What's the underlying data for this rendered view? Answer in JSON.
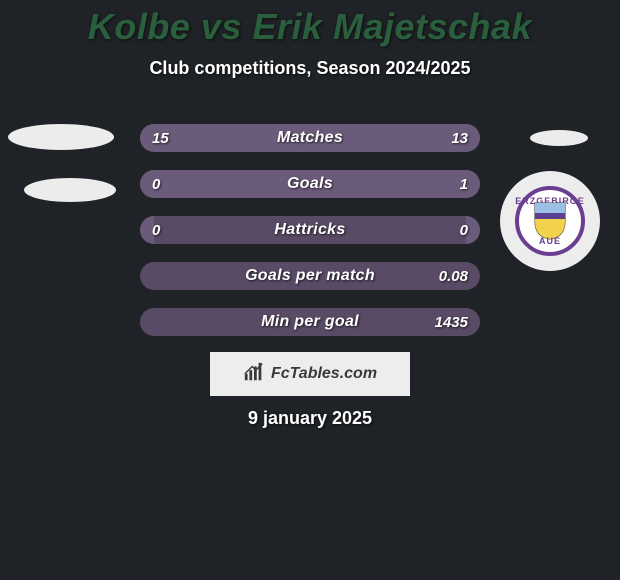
{
  "background_color": "#1f2226",
  "accent_green": "#2a5f3e",
  "bar_track_color": "#594a65",
  "fill_outer_color": "#6b5b7a",
  "ellipse_color": "#ececec",
  "badge_bg": "#ededed",
  "badge_ring": "#6a3f91",
  "badge_inner_bg": "#ffffff",
  "brand_bg": "#ededed",
  "brand_text_color": "#3a3a3a",
  "shield_top": "#9dbfe5",
  "shield_bottom": "#f2d24a",
  "shield_band": "#5a3f90",
  "title": "Kolbe vs Erik Majetschak",
  "subtitle": "Club competitions, Season 2024/2025",
  "brand_text": "FcTables.com",
  "date_text": "9 january 2025",
  "badge_top_text": "ERZGEBIRGE",
  "badge_bottom_text": "AUE",
  "rows": [
    {
      "label": "Matches",
      "left": "15",
      "right": "13",
      "left_pct": 53,
      "right_pct": 47
    },
    {
      "label": "Goals",
      "left": "0",
      "right": "1",
      "left_pct": 4,
      "right_pct": 96
    },
    {
      "label": "Hattricks",
      "left": "0",
      "right": "0",
      "left_pct": 4,
      "right_pct": 4
    },
    {
      "label": "Goals per match",
      "left": "",
      "right": "0.08",
      "left_pct": 0,
      "right_pct": 0
    },
    {
      "label": "Min per goal",
      "left": "",
      "right": "1435",
      "left_pct": 0,
      "right_pct": 0
    }
  ]
}
